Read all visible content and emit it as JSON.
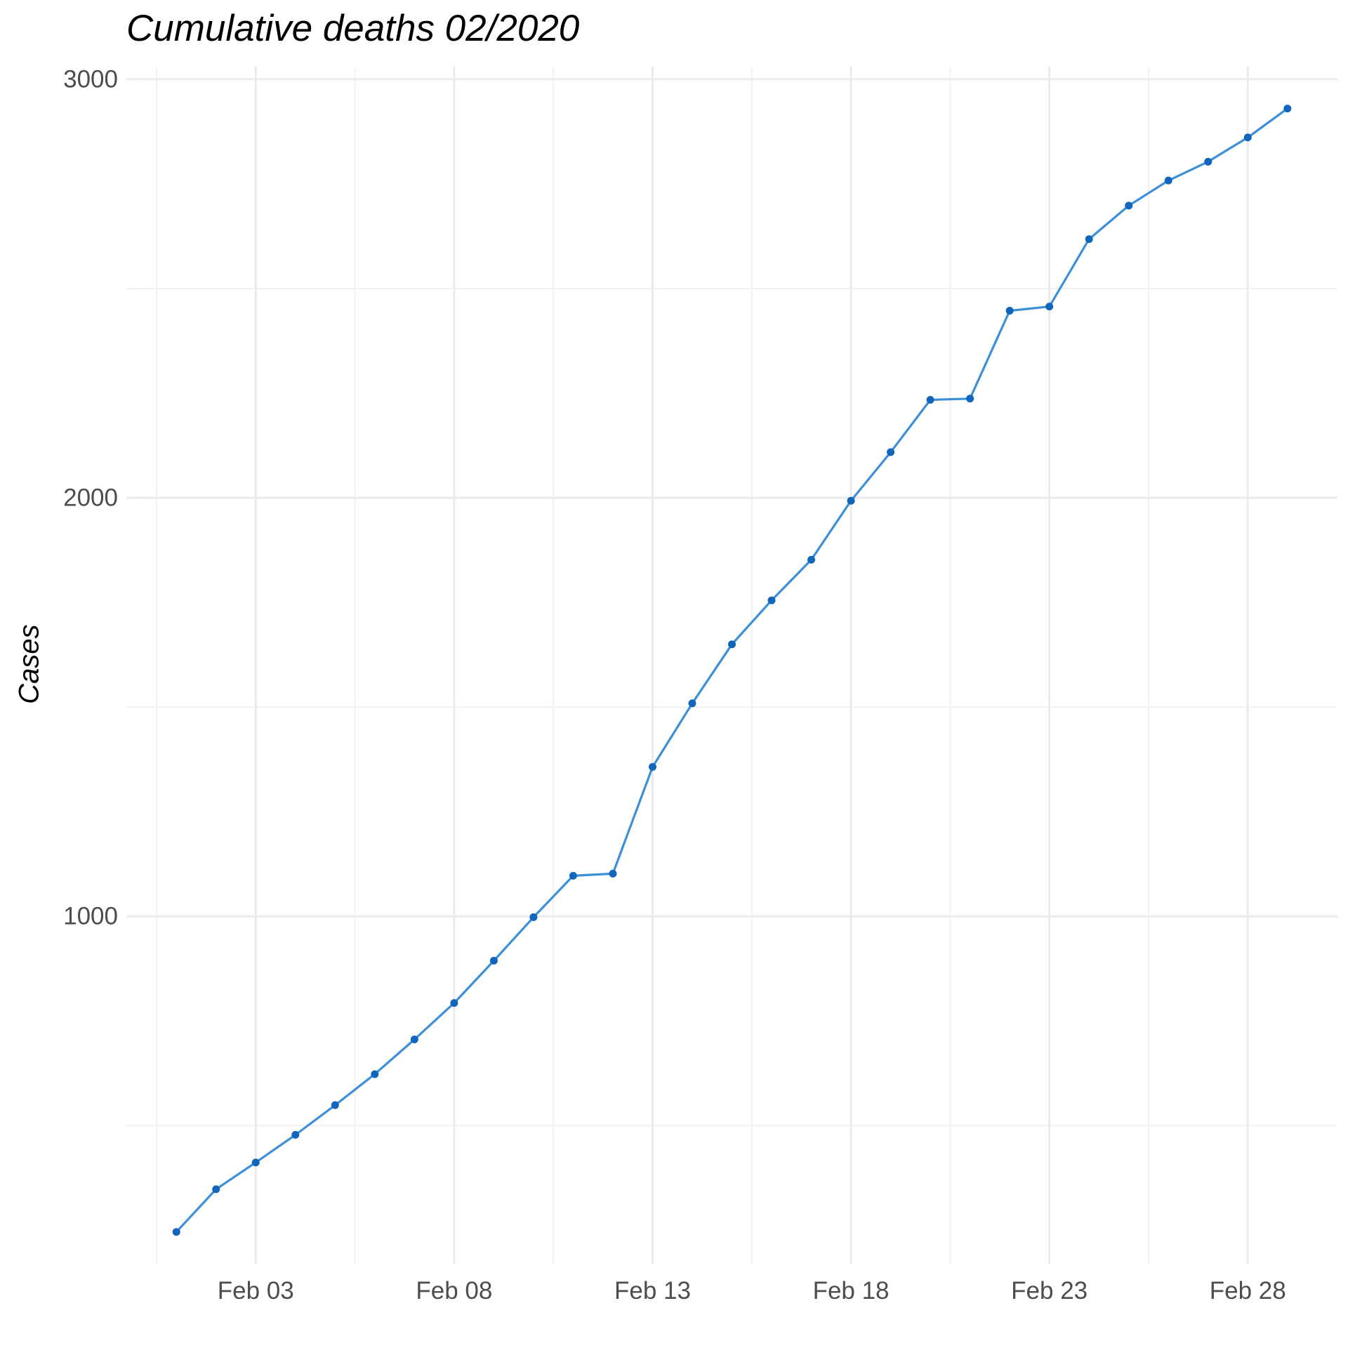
{
  "chart_data": {
    "type": "line",
    "title": "Cumulative deaths 02/2020",
    "xlabel": "",
    "ylabel": "Cases",
    "x_tick_labels": [
      "Feb 03",
      "Feb 08",
      "Feb 13",
      "Feb 18",
      "Feb 23",
      "Feb 28"
    ],
    "y_tick_labels": [
      "1000",
      "2000",
      "3000"
    ],
    "ylim": [
      170,
      3030
    ],
    "grid": true,
    "line_color": "#3c8fd8",
    "point_color": "#1166bb",
    "series": [
      {
        "x": [
          "2020-02-01",
          "2020-02-02",
          "2020-02-03",
          "2020-02-04",
          "2020-02-05",
          "2020-02-06",
          "2020-02-07",
          "2020-02-08",
          "2020-02-09",
          "2020-02-10",
          "2020-02-11",
          "2020-02-12",
          "2020-02-13",
          "2020-02-14",
          "2020-02-15",
          "2020-02-16",
          "2020-02-17",
          "2020-02-18",
          "2020-02-19",
          "2020-02-20",
          "2020-02-21",
          "2020-02-22",
          "2020-02-23",
          "2020-02-24",
          "2020-02-25",
          "2020-02-26",
          "2020-02-27",
          "2020-02-28",
          "2020-02-29"
        ],
        "values": [
          246,
          348,
          412,
          478,
          549,
          623,
          706,
          793,
          894,
          998,
          1097,
          1102,
          1357,
          1509,
          1650,
          1755,
          1852,
          1993,
          2109,
          2234,
          2237,
          2447,
          2457,
          2618,
          2698,
          2758,
          2803,
          2861,
          2930
        ]
      }
    ]
  }
}
